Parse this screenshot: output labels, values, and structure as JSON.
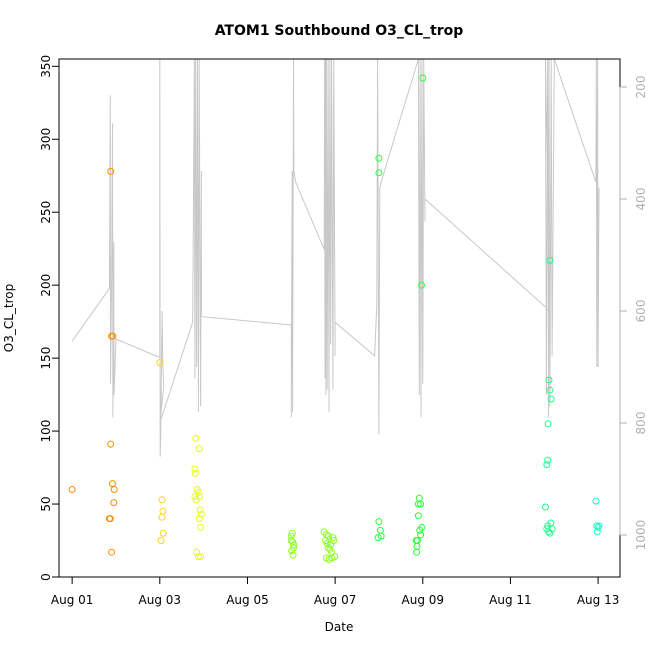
{
  "chart_data": {
    "type": "scatter",
    "title": "ATOM1 Southbound O3_CL_trop",
    "xlabel": "Date",
    "ylabel": "O3_CL_trop",
    "xlim": [
      -0.3,
      12.5
    ],
    "ylim": [
      0,
      355
    ],
    "x_tick_values": [
      0,
      2,
      4,
      6,
      8,
      10,
      12
    ],
    "x_tick_labels": [
      "Aug 01",
      "Aug 03",
      "Aug 05",
      "Aug 07",
      "Aug 09",
      "Aug 11",
      "Aug 13"
    ],
    "y_ticks": [
      0,
      50,
      100,
      150,
      200,
      250,
      300,
      350
    ],
    "right_axis": {
      "reversed": true,
      "ylim": [
        1075,
        150
      ],
      "ticks": [
        200,
        400,
        600,
        800,
        1000
      ],
      "color": "#b0b0b0"
    },
    "colors": {
      "grey_line": "#c8c8c8",
      "orange": "#ff8c00",
      "gold": "#ffd21e",
      "yellow": "#e6ff1e",
      "lime": "#8cff1e",
      "green": "#28ff3c",
      "teal": "#1eff8c",
      "cyan": "#1effc8"
    },
    "points": [
      {
        "x": 0.0,
        "y": 60,
        "c": "orange"
      },
      {
        "x": 0.85,
        "y": 40,
        "c": "orange"
      },
      {
        "x": 0.87,
        "y": 40,
        "c": "orange"
      },
      {
        "x": 0.88,
        "y": 91,
        "c": "orange"
      },
      {
        "x": 0.9,
        "y": 17,
        "c": "orange"
      },
      {
        "x": 0.92,
        "y": 64,
        "c": "orange"
      },
      {
        "x": 0.95,
        "y": 51,
        "c": "orange"
      },
      {
        "x": 0.96,
        "y": 60,
        "c": "orange"
      },
      {
        "x": 0.88,
        "y": 278,
        "c": "orange"
      },
      {
        "x": 0.9,
        "y": 165,
        "c": "orange"
      },
      {
        "x": 0.93,
        "y": 165,
        "c": "orange"
      },
      {
        "x": 2.0,
        "y": 147,
        "c": "gold"
      },
      {
        "x": 2.05,
        "y": 53,
        "c": "gold"
      },
      {
        "x": 2.05,
        "y": 41,
        "c": "gold"
      },
      {
        "x": 2.07,
        "y": 45,
        "c": "gold"
      },
      {
        "x": 2.08,
        "y": 30,
        "c": "gold"
      },
      {
        "x": 2.03,
        "y": 25,
        "c": "gold"
      },
      {
        "x": 2.82,
        "y": 95,
        "c": "yellow"
      },
      {
        "x": 2.9,
        "y": 88,
        "c": "yellow"
      },
      {
        "x": 2.8,
        "y": 74,
        "c": "yellow"
      },
      {
        "x": 2.81,
        "y": 71,
        "c": "yellow"
      },
      {
        "x": 2.85,
        "y": 60,
        "c": "yellow"
      },
      {
        "x": 2.88,
        "y": 58,
        "c": "yellow"
      },
      {
        "x": 2.8,
        "y": 55,
        "c": "yellow"
      },
      {
        "x": 2.83,
        "y": 53,
        "c": "yellow"
      },
      {
        "x": 2.9,
        "y": 55,
        "c": "yellow"
      },
      {
        "x": 2.92,
        "y": 46,
        "c": "yellow"
      },
      {
        "x": 2.95,
        "y": 43,
        "c": "yellow"
      },
      {
        "x": 2.9,
        "y": 40,
        "c": "yellow"
      },
      {
        "x": 2.93,
        "y": 34,
        "c": "yellow"
      },
      {
        "x": 2.84,
        "y": 17,
        "c": "yellow"
      },
      {
        "x": 2.88,
        "y": 14,
        "c": "yellow"
      },
      {
        "x": 2.93,
        "y": 14,
        "c": "yellow"
      },
      {
        "x": 5.0,
        "y": 28,
        "c": "lime"
      },
      {
        "x": 5.02,
        "y": 30,
        "c": "lime"
      },
      {
        "x": 5.0,
        "y": 25,
        "c": "lime"
      },
      {
        "x": 5.03,
        "y": 24,
        "c": "lime"
      },
      {
        "x": 5.05,
        "y": 20,
        "c": "lime"
      },
      {
        "x": 5.01,
        "y": 18,
        "c": "lime"
      },
      {
        "x": 5.04,
        "y": 15,
        "c": "lime"
      },
      {
        "x": 5.06,
        "y": 22,
        "c": "lime"
      },
      {
        "x": 5.75,
        "y": 31,
        "c": "lime"
      },
      {
        "x": 5.8,
        "y": 29,
        "c": "lime"
      },
      {
        "x": 5.85,
        "y": 28,
        "c": "lime"
      },
      {
        "x": 5.78,
        "y": 25,
        "c": "lime"
      },
      {
        "x": 5.82,
        "y": 23,
        "c": "lime"
      },
      {
        "x": 5.9,
        "y": 22,
        "c": "lime"
      },
      {
        "x": 5.95,
        "y": 27,
        "c": "lime"
      },
      {
        "x": 5.88,
        "y": 19,
        "c": "lime"
      },
      {
        "x": 5.92,
        "y": 17,
        "c": "lime"
      },
      {
        "x": 5.97,
        "y": 25,
        "c": "lime"
      },
      {
        "x": 5.8,
        "y": 13,
        "c": "lime"
      },
      {
        "x": 5.86,
        "y": 12,
        "c": "lime"
      },
      {
        "x": 5.93,
        "y": 13,
        "c": "lime"
      },
      {
        "x": 5.99,
        "y": 14,
        "c": "lime"
      },
      {
        "x": 5.84,
        "y": 20,
        "c": "lime"
      },
      {
        "x": 7.0,
        "y": 287,
        "c": "green"
      },
      {
        "x": 7.0,
        "y": 277,
        "c": "green"
      },
      {
        "x": 7.0,
        "y": 38,
        "c": "green"
      },
      {
        "x": 7.03,
        "y": 32,
        "c": "green"
      },
      {
        "x": 6.98,
        "y": 27,
        "c": "green"
      },
      {
        "x": 7.05,
        "y": 28,
        "c": "green"
      },
      {
        "x": 7.85,
        "y": 25,
        "c": "green"
      },
      {
        "x": 7.88,
        "y": 25,
        "c": "green"
      },
      {
        "x": 7.87,
        "y": 21,
        "c": "green"
      },
      {
        "x": 7.86,
        "y": 17,
        "c": "green"
      },
      {
        "x": 7.9,
        "y": 42,
        "c": "green"
      },
      {
        "x": 7.92,
        "y": 54,
        "c": "green"
      },
      {
        "x": 7.9,
        "y": 50,
        "c": "green"
      },
      {
        "x": 7.95,
        "y": 50,
        "c": "green"
      },
      {
        "x": 7.93,
        "y": 32,
        "c": "green"
      },
      {
        "x": 7.98,
        "y": 34,
        "c": "green"
      },
      {
        "x": 7.95,
        "y": 29,
        "c": "green"
      },
      {
        "x": 7.97,
        "y": 200,
        "c": "green"
      },
      {
        "x": 8.0,
        "y": 342,
        "c": "green"
      },
      {
        "x": 10.8,
        "y": 48,
        "c": "teal"
      },
      {
        "x": 10.85,
        "y": 35,
        "c": "teal"
      },
      {
        "x": 10.83,
        "y": 33,
        "c": "teal"
      },
      {
        "x": 10.87,
        "y": 31,
        "c": "teal"
      },
      {
        "x": 10.92,
        "y": 37,
        "c": "teal"
      },
      {
        "x": 10.95,
        "y": 33,
        "c": "teal"
      },
      {
        "x": 10.9,
        "y": 30,
        "c": "teal"
      },
      {
        "x": 10.85,
        "y": 80,
        "c": "teal"
      },
      {
        "x": 10.83,
        "y": 77,
        "c": "teal"
      },
      {
        "x": 10.86,
        "y": 105,
        "c": "teal"
      },
      {
        "x": 10.88,
        "y": 135,
        "c": "teal"
      },
      {
        "x": 10.9,
        "y": 128,
        "c": "teal"
      },
      {
        "x": 10.93,
        "y": 122,
        "c": "teal"
      },
      {
        "x": 10.9,
        "y": 217,
        "c": "teal"
      },
      {
        "x": 11.95,
        "y": 52,
        "c": "cyan"
      },
      {
        "x": 11.97,
        "y": 35,
        "c": "cyan"
      },
      {
        "x": 12.0,
        "y": 34,
        "c": "cyan"
      },
      {
        "x": 11.98,
        "y": 31,
        "c": "cyan"
      },
      {
        "x": 12.02,
        "y": 35,
        "c": "cyan"
      }
    ],
    "grey_profile": [
      [
        0.0,
        654
      ],
      [
        0.85,
        560
      ],
      [
        0.87,
        215
      ],
      [
        0.875,
        730
      ],
      [
        0.9,
        545
      ],
      [
        0.92,
        265
      ],
      [
        0.93,
        790
      ],
      [
        0.95,
        477
      ],
      [
        0.955,
        750
      ],
      [
        1.0,
        650
      ],
      [
        2.0,
        683
      ],
      [
        2.0,
        150
      ],
      [
        2.01,
        860
      ],
      [
        2.02,
        820
      ],
      [
        2.05,
        610
      ],
      [
        2.05,
        600
      ],
      [
        2.07,
        700
      ],
      [
        2.09,
        735
      ],
      [
        2.0,
        800
      ],
      [
        2.75,
        620
      ],
      [
        2.79,
        150
      ],
      [
        2.8,
        720
      ],
      [
        2.82,
        150
      ],
      [
        2.84,
        700
      ],
      [
        2.86,
        150
      ],
      [
        2.88,
        780
      ],
      [
        2.9,
        150
      ],
      [
        2.93,
        770
      ],
      [
        2.95,
        350
      ],
      [
        2.95,
        610
      ],
      [
        5.0,
        625
      ],
      [
        5.0,
        790
      ],
      [
        5.01,
        530
      ],
      [
        5.02,
        350
      ],
      [
        5.03,
        780
      ],
      [
        5.05,
        150
      ],
      [
        5.06,
        350
      ],
      [
        5.1,
        370
      ],
      [
        5.75,
        490
      ],
      [
        5.76,
        150
      ],
      [
        5.77,
        720
      ],
      [
        5.78,
        150
      ],
      [
        5.79,
        750
      ],
      [
        5.8,
        150
      ],
      [
        5.82,
        740
      ],
      [
        5.84,
        150
      ],
      [
        5.86,
        780
      ],
      [
        5.88,
        150
      ],
      [
        5.9,
        660
      ],
      [
        5.92,
        150
      ],
      [
        5.95,
        740
      ],
      [
        5.97,
        150
      ],
      [
        6.0,
        680
      ],
      [
        6.0,
        620
      ],
      [
        6.9,
        680
      ],
      [
        6.95,
        590
      ],
      [
        6.97,
        150
      ],
      [
        7.0,
        820
      ],
      [
        7.02,
        380
      ],
      [
        7.05,
        370
      ],
      [
        7.05,
        370
      ],
      [
        7.9,
        150
      ],
      [
        7.92,
        750
      ],
      [
        7.94,
        150
      ],
      [
        7.96,
        790
      ],
      [
        7.98,
        150
      ],
      [
        8.0,
        730
      ],
      [
        8.02,
        150
      ],
      [
        8.05,
        440
      ],
      [
        8.05,
        400
      ],
      [
        10.9,
        600
      ],
      [
        10.8,
        150
      ],
      [
        10.82,
        750
      ],
      [
        10.85,
        150
      ],
      [
        10.87,
        790
      ],
      [
        10.88,
        150
      ],
      [
        10.9,
        770
      ],
      [
        10.93,
        150
      ],
      [
        10.95,
        680
      ],
      [
        11.0,
        150
      ],
      [
        11.0,
        150
      ],
      [
        11.95,
        370
      ],
      [
        11.96,
        150
      ],
      [
        11.97,
        700
      ],
      [
        11.99,
        150
      ],
      [
        12.0,
        700
      ],
      [
        12.02,
        380
      ],
      [
        12.0,
        620
      ]
    ]
  }
}
